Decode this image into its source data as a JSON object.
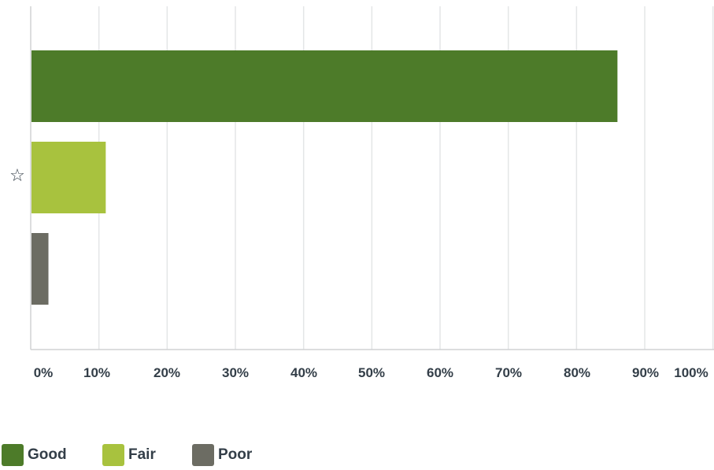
{
  "chart_data": {
    "type": "bar",
    "orientation": "horizontal",
    "category_icon": "star-outline-icon",
    "category_icon_glyph": "☆",
    "series": [
      {
        "name": "Good",
        "value": 86,
        "color": "#4d7b29"
      },
      {
        "name": "Fair",
        "value": 11,
        "color": "#a8c23e"
      },
      {
        "name": "Poor",
        "value": 2.6,
        "color": "#6c6c63"
      }
    ],
    "xlim": [
      0,
      100
    ],
    "x_ticks": [
      "0%",
      "10%",
      "20%",
      "30%",
      "40%",
      "50%",
      "60%",
      "70%",
      "80%",
      "90%",
      "100%"
    ],
    "grid": "vertical",
    "legend_position": "bottom-left"
  }
}
